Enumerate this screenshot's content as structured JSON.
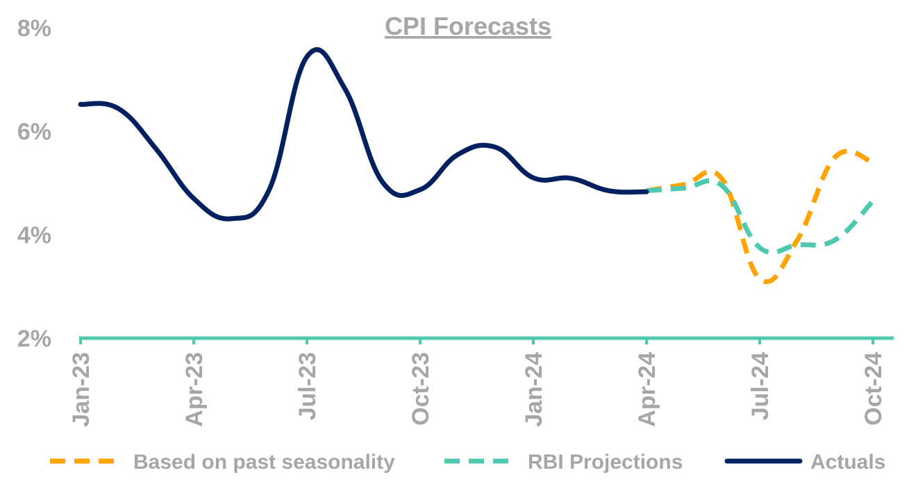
{
  "chart_data": {
    "type": "line",
    "title": "CPI Forecasts",
    "xlabel": "",
    "ylabel": "",
    "ylim": [
      2,
      8
    ],
    "yticks": [
      "2%",
      "4%",
      "6%",
      "8%"
    ],
    "ytick_values": [
      2,
      4,
      6,
      8
    ],
    "x": [
      "Jan-23",
      "Feb-23",
      "Mar-23",
      "Apr-23",
      "May-23",
      "Jun-23",
      "Jul-23",
      "Aug-23",
      "Sep-23",
      "Oct-23",
      "Nov-23",
      "Dec-23",
      "Jan-24",
      "Feb-24",
      "Mar-24",
      "Apr-24",
      "May-24",
      "Jun-24",
      "Jul-24",
      "Aug-24",
      "Sep-24",
      "Oct-24"
    ],
    "xtick_labels": [
      "Jan-23",
      "Apr-23",
      "Jul-23",
      "Oct-23",
      "Jan-24",
      "Apr-24",
      "Jul-24",
      "Oct-24"
    ],
    "grid": false,
    "legend_position": "bottom",
    "series": [
      {
        "name": "Based on past seasonality",
        "color": "#ffa300",
        "style": "dashed",
        "x": [
          "Apr-24",
          "May-24",
          "Jun-24",
          "Jul-24",
          "Aug-24",
          "Sep-24",
          "Oct-24"
        ],
        "values": [
          4.85,
          4.97,
          5.08,
          3.15,
          3.9,
          5.5,
          5.4
        ]
      },
      {
        "name": "RBI Projections",
        "color": "#4ec9b0",
        "style": "dashed",
        "x": [
          "Apr-24",
          "May-24",
          "Jun-24",
          "Jul-24",
          "Aug-24",
          "Sep-24",
          "Oct-24"
        ],
        "values": [
          4.85,
          4.9,
          4.95,
          3.75,
          3.8,
          3.9,
          4.65
        ]
      },
      {
        "name": "Actuals",
        "color": "#002060",
        "style": "solid",
        "x": [
          "Jan-23",
          "Feb-23",
          "Mar-23",
          "Apr-23",
          "May-23",
          "Jun-23",
          "Jul-23",
          "Aug-23",
          "Sep-23",
          "Oct-23",
          "Nov-23",
          "Dec-23",
          "Jan-24",
          "Feb-24",
          "Mar-24",
          "Apr-24"
        ],
        "values": [
          6.52,
          6.44,
          5.66,
          4.7,
          4.31,
          4.87,
          7.44,
          6.83,
          5.02,
          4.87,
          5.55,
          5.69,
          5.1,
          5.09,
          4.85,
          4.83
        ]
      }
    ]
  }
}
